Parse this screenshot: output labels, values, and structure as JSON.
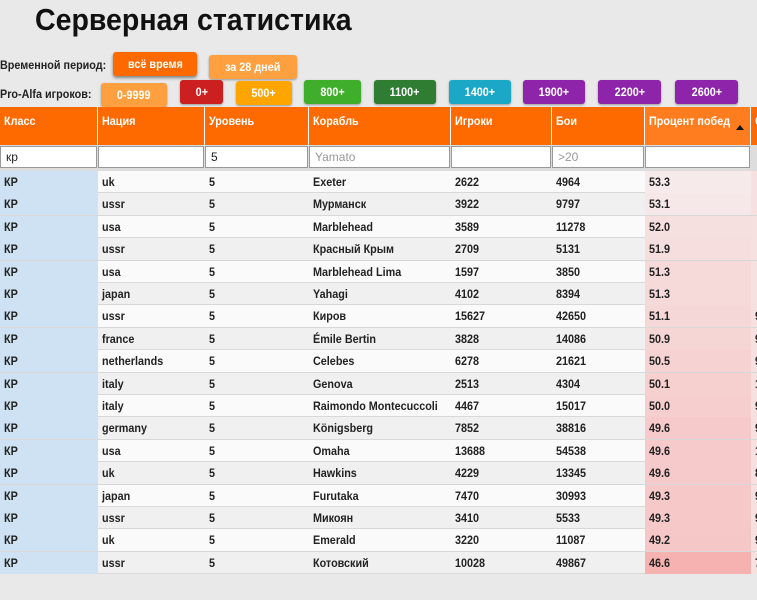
{
  "title": "Серверная статистика",
  "period": {
    "label": "Временной период:",
    "options": [
      {
        "label": "всё время",
        "color": "#ff6a00",
        "active": true
      },
      {
        "label": "за 28 дней",
        "color": "#ffa040",
        "active": false
      }
    ]
  },
  "players": {
    "label": "Pro-Alfa игроков:",
    "options": [
      {
        "label": "0-9999",
        "color": "#ffa040"
      },
      {
        "label": "0+",
        "color": "#cc1f1f"
      },
      {
        "label": "500+",
        "color": "#ffa500"
      },
      {
        "label": "800+",
        "color": "#3fae2a"
      },
      {
        "label": "1100+",
        "color": "#2e7d32"
      },
      {
        "label": "1400+",
        "color": "#1aa8c6"
      },
      {
        "label": "1900+",
        "color": "#8e24aa"
      },
      {
        "label": "2200+",
        "color": "#8e24aa"
      },
      {
        "label": "2600+",
        "color": "#8e24aa"
      }
    ]
  },
  "table": {
    "columns": [
      "Класс",
      "Нация",
      "Уровень",
      "Корабль",
      "Игроки",
      "Бои",
      "Процент побед",
      "С"
    ],
    "filters": {
      "class": "кр",
      "nation": "",
      "tier": "5",
      "ship_placeholder": "Yamato",
      "players": "",
      "battles_placeholder": ">20",
      "winrate": ""
    },
    "rows": [
      {
        "cls": "КР",
        "nation": "uk",
        "tier": "5",
        "ship": "Exeter",
        "players": "2622",
        "battles": "4964",
        "wr": "53.3",
        "more": ""
      },
      {
        "cls": "КР",
        "nation": "ussr",
        "tier": "5",
        "ship": "Мурманск",
        "players": "3922",
        "battles": "9797",
        "wr": "53.1",
        "more": ""
      },
      {
        "cls": "КР",
        "nation": "usa",
        "tier": "5",
        "ship": "Marblehead",
        "players": "3589",
        "battles": "11278",
        "wr": "52.0",
        "more": ""
      },
      {
        "cls": "КР",
        "nation": "ussr",
        "tier": "5",
        "ship": "Красный Крым",
        "players": "2709",
        "battles": "5131",
        "wr": "51.9",
        "more": ""
      },
      {
        "cls": "КР",
        "nation": "usa",
        "tier": "5",
        "ship": "Marblehead Lima",
        "players": "1597",
        "battles": "3850",
        "wr": "51.3",
        "more": ""
      },
      {
        "cls": "КР",
        "nation": "japan",
        "tier": "5",
        "ship": "Yahagi",
        "players": "4102",
        "battles": "8394",
        "wr": "51.3",
        "more": ""
      },
      {
        "cls": "КР",
        "nation": "ussr",
        "tier": "5",
        "ship": "Киров",
        "players": "15627",
        "battles": "42650",
        "wr": "51.1",
        "more": "9"
      },
      {
        "cls": "КР",
        "nation": "france",
        "tier": "5",
        "ship": "Émile Bertin",
        "players": "3828",
        "battles": "14086",
        "wr": "50.9",
        "more": "9"
      },
      {
        "cls": "КР",
        "nation": "netherlands",
        "tier": "5",
        "ship": "Celebes",
        "players": "6278",
        "battles": "21621",
        "wr": "50.5",
        "more": "9"
      },
      {
        "cls": "КР",
        "nation": "italy",
        "tier": "5",
        "ship": "Genova",
        "players": "2513",
        "battles": "4304",
        "wr": "50.1",
        "more": "1"
      },
      {
        "cls": "КР",
        "nation": "italy",
        "tier": "5",
        "ship": "Raimondo Montecuccoli",
        "players": "4467",
        "battles": "15017",
        "wr": "50.0",
        "more": "9"
      },
      {
        "cls": "КР",
        "nation": "germany",
        "tier": "5",
        "ship": "Königsberg",
        "players": "7852",
        "battles": "38816",
        "wr": "49.6",
        "more": "9"
      },
      {
        "cls": "КР",
        "nation": "usa",
        "tier": "5",
        "ship": "Omaha",
        "players": "13688",
        "battles": "54538",
        "wr": "49.6",
        "more": "1"
      },
      {
        "cls": "КР",
        "nation": "uk",
        "tier": "5",
        "ship": "Hawkins",
        "players": "4229",
        "battles": "13345",
        "wr": "49.6",
        "more": "8"
      },
      {
        "cls": "КР",
        "nation": "japan",
        "tier": "5",
        "ship": "Furutaka",
        "players": "7470",
        "battles": "30993",
        "wr": "49.3",
        "more": "9"
      },
      {
        "cls": "КР",
        "nation": "ussr",
        "tier": "5",
        "ship": "Микоян",
        "players": "3410",
        "battles": "5533",
        "wr": "49.3",
        "more": "9"
      },
      {
        "cls": "КР",
        "nation": "uk",
        "tier": "5",
        "ship": "Emerald",
        "players": "3220",
        "battles": "11087",
        "wr": "49.2",
        "more": "9"
      },
      {
        "cls": "КР",
        "nation": "ussr",
        "tier": "5",
        "ship": "Котовский",
        "players": "10028",
        "battles": "49867",
        "wr": "46.6",
        "more": "7"
      }
    ]
  }
}
